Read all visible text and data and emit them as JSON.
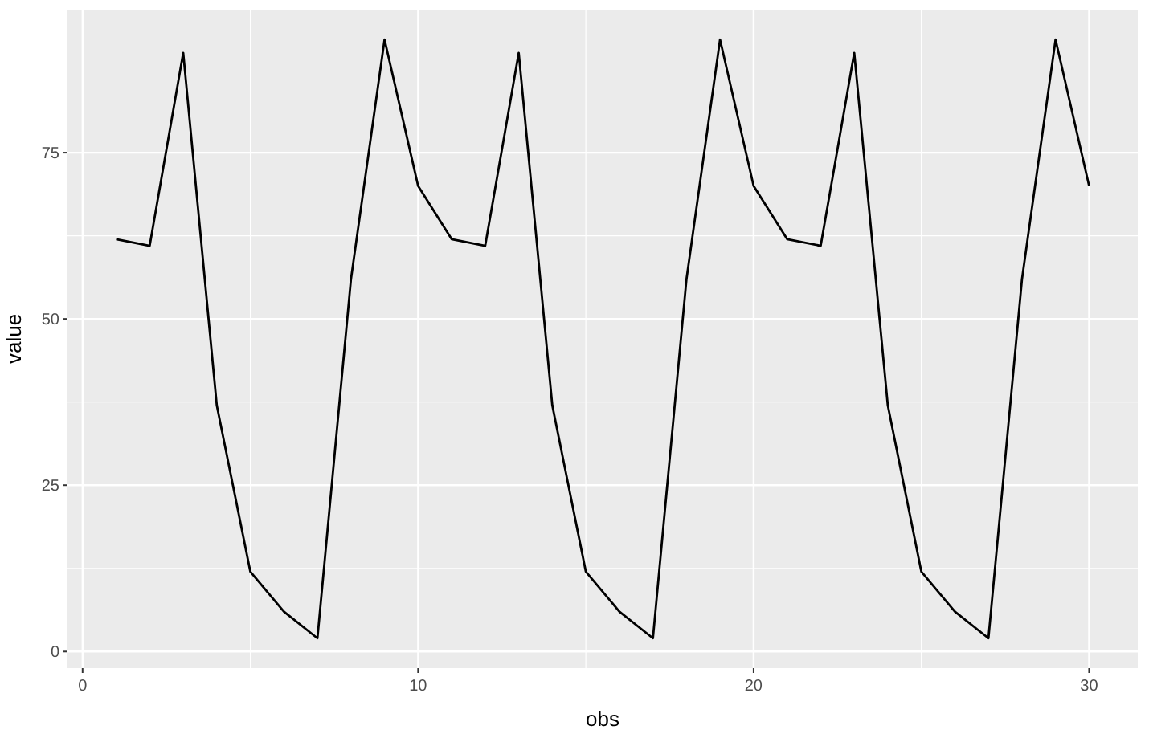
{
  "chart_data": {
    "type": "line",
    "xlabel": "obs",
    "ylabel": "value",
    "x": [
      1,
      2,
      3,
      4,
      5,
      6,
      7,
      8,
      9,
      10,
      11,
      12,
      13,
      14,
      15,
      16,
      17,
      18,
      19,
      20,
      21,
      22,
      23,
      24,
      25,
      26,
      27,
      28,
      29,
      30
    ],
    "series": [
      {
        "color": "#000000",
        "values": [
          62,
          61,
          90,
          37,
          12,
          6,
          2,
          56,
          92,
          70,
          62,
          61,
          90,
          37,
          12,
          6,
          2,
          56,
          92,
          70,
          62,
          61,
          90,
          37,
          12,
          6,
          2,
          56,
          92,
          70
        ]
      }
    ],
    "xlim": [
      -0.45,
      31.45
    ],
    "ylim": [
      -2.5,
      96.5
    ],
    "xticks": [
      0,
      10,
      20,
      30
    ],
    "yticks": [
      0,
      25,
      50,
      75
    ],
    "grid": true
  }
}
